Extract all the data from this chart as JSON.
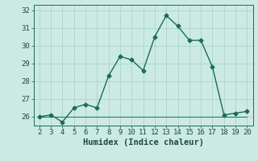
{
  "xlabel": "Humidex (Indice chaleur)",
  "x": [
    2,
    3,
    4,
    5,
    6,
    7,
    8,
    9,
    10,
    11,
    12,
    13,
    14,
    15,
    16,
    17,
    18,
    19,
    20
  ],
  "y_main": [
    26.0,
    26.1,
    25.7,
    26.5,
    26.7,
    26.5,
    28.3,
    29.4,
    29.2,
    28.6,
    30.5,
    31.7,
    31.1,
    30.3,
    30.3,
    28.8,
    26.1,
    26.2,
    26.3
  ],
  "y_flat": [
    26.0,
    26.0,
    26.0,
    26.0,
    26.0,
    26.0,
    26.0,
    26.0,
    26.0,
    26.0,
    26.0,
    26.0,
    26.0,
    26.0,
    26.0,
    26.0,
    26.0,
    26.0,
    26.0
  ],
  "line_color": "#1a6b5a",
  "bg_color": "#cceae4",
  "grid_color": "#aad4cc",
  "text_color": "#1a4a40",
  "ylim": [
    25.5,
    32.3
  ],
  "yticks": [
    26,
    27,
    28,
    29,
    30,
    31,
    32
  ],
  "xlim": [
    1.5,
    20.5
  ],
  "xticks": [
    2,
    3,
    4,
    5,
    6,
    7,
    8,
    9,
    10,
    11,
    12,
    13,
    14,
    15,
    16,
    17,
    18,
    19,
    20
  ],
  "marker": "D",
  "markersize": 2.5,
  "linewidth": 1.0,
  "tick_fontsize": 6.5,
  "xlabel_fontsize": 7.5,
  "font_family": "monospace"
}
